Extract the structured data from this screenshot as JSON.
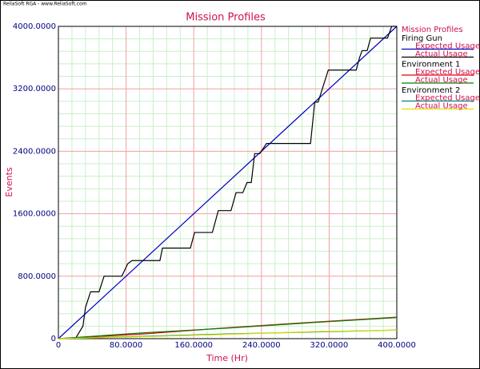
{
  "header": {
    "credit": "ReliaSoft RGA - www.ReliaSoft.com"
  },
  "chart_data": {
    "type": "line",
    "title": "Mission Profiles",
    "x_label": "Time (Hr)",
    "y_label": "Events",
    "xlim": [
      0,
      400
    ],
    "ylim": [
      0,
      4000
    ],
    "xticks": [
      0,
      {
        "value": 80,
        "label": "80.0000"
      },
      {
        "value": 160,
        "label": "160.0000"
      },
      {
        "value": 240,
        "label": "240.0000"
      },
      {
        "value": 320,
        "label": "320.0000"
      },
      {
        "value": 400,
        "label": "400.0000"
      }
    ],
    "yticks": [
      0,
      {
        "value": 800,
        "label": "800.0000"
      },
      {
        "value": 1600,
        "label": "1600.0000"
      },
      {
        "value": 2400,
        "label": "2400.0000"
      },
      {
        "value": 3200,
        "label": "3200.0000"
      },
      {
        "value": 4000,
        "label": "4000.0000"
      }
    ],
    "grid": true,
    "minor_grid_divisions": 5,
    "legend_title": "Mission Profiles",
    "legend_position": "right",
    "groups": [
      {
        "name": "Firing Gun",
        "series": [
          {
            "name": "Expected Usage",
            "color": "#0000c0",
            "x": [
              0,
              400
            ],
            "values": [
              0,
              4000
            ]
          },
          {
            "name": "Actual Usage",
            "color": "#000000",
            "x": [
              0,
              20,
              29,
              32,
              38,
              48,
              54,
              75,
              82,
              87,
              120,
              123,
              156,
              161,
              182,
              189,
              204,
              210,
              218,
              223,
              228,
              232,
              238,
              246,
              298,
              303,
              307,
              319,
              352,
              356,
              359,
              365,
              369,
              389,
              394,
              400
            ],
            "values": [
              0,
              0,
              160,
              400,
              600,
              600,
              800,
              800,
              960,
              1000,
              1000,
              1160,
              1160,
              1360,
              1360,
              1640,
              1640,
              1870,
              1870,
              2000,
              2000,
              2370,
              2370,
              2500,
              2500,
              3030,
              3030,
              3440,
              3440,
              3600,
              3690,
              3690,
              3850,
              3850,
              4000,
              4000
            ]
          }
        ]
      },
      {
        "name": "Environment 1",
        "series": [
          {
            "name": "Expected Usage",
            "color": "#e00000",
            "x": [
              0,
              100,
              200,
              300,
              400
            ],
            "values": [
              0,
              60,
              140,
              210,
              275
            ]
          },
          {
            "name": "Actual Usage",
            "color": "#008000",
            "x": [
              0,
              100,
              200,
              300,
              400
            ],
            "values": [
              0,
              75,
              135,
              205,
              270
            ]
          }
        ]
      },
      {
        "name": "Environment 2",
        "series": [
          {
            "name": "Expected Usage",
            "color": "#008080",
            "x": [
              0,
              100,
              200,
              300,
              400
            ],
            "values": [
              0,
              30,
              60,
              85,
              110
            ]
          },
          {
            "name": "Actual Usage",
            "color": "#e0e000",
            "x": [
              0,
              100,
              200,
              300,
              400
            ],
            "values": [
              0,
              25,
              55,
              90,
              110
            ]
          }
        ]
      }
    ]
  }
}
